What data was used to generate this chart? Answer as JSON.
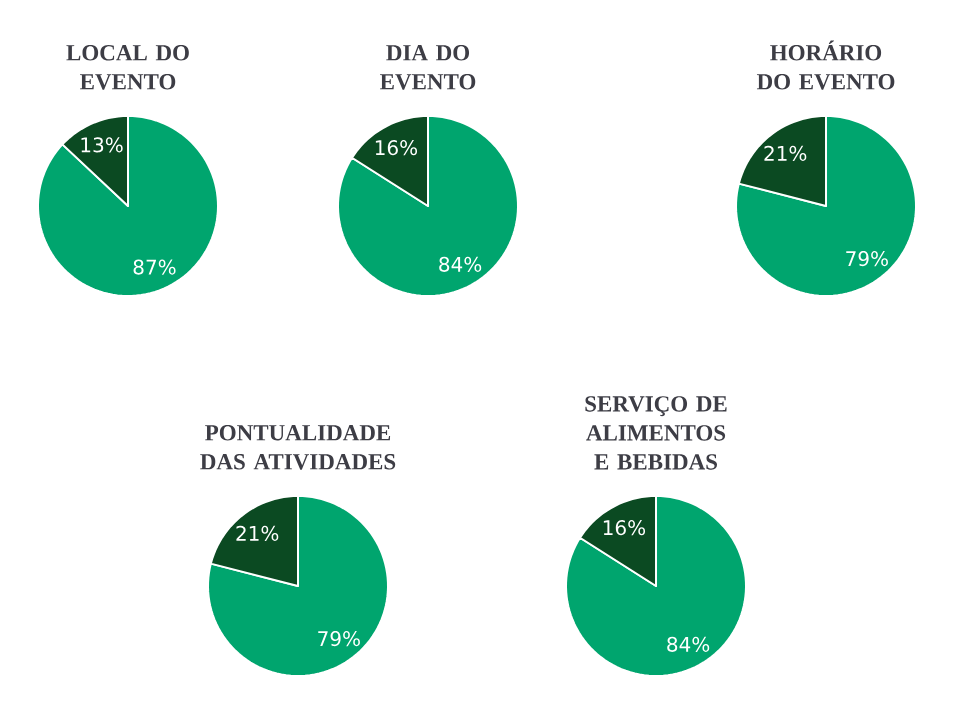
{
  "chart_data": [
    {
      "type": "pie",
      "title": "LOCAL DO EVENTO",
      "categories": [
        null,
        null
      ],
      "values": [
        87,
        13
      ],
      "colors": [
        "#00a56e",
        "#0b4a22"
      ],
      "value_labels": [
        "87%",
        "13%"
      ]
    },
    {
      "type": "pie",
      "title": "DIA DO EVENTO",
      "categories": [
        null,
        null
      ],
      "values": [
        84,
        16
      ],
      "colors": [
        "#00a56e",
        "#0b4a22"
      ],
      "value_labels": [
        "84%",
        "16%"
      ]
    },
    {
      "type": "pie",
      "title": "HORÁRIO DO EVENTO",
      "categories": [
        null,
        null
      ],
      "values": [
        79,
        21
      ],
      "colors": [
        "#00a56e",
        "#0b4a22"
      ],
      "value_labels": [
        "79%",
        "21%"
      ]
    },
    {
      "type": "pie",
      "title": "PONTUALIDADE DAS ATIVIDADES",
      "categories": [
        null,
        null
      ],
      "values": [
        79,
        21
      ],
      "colors": [
        "#00a56e",
        "#0b4a22"
      ],
      "value_labels": [
        "79%",
        "21%"
      ]
    },
    {
      "type": "pie",
      "title": "SERVIÇO DE ALIMENTOS E BEBIDAS",
      "categories": [
        null,
        null
      ],
      "values": [
        84,
        16
      ],
      "colors": [
        "#00a56e",
        "#0b4a22"
      ],
      "value_labels": [
        "84%",
        "16%"
      ]
    }
  ]
}
